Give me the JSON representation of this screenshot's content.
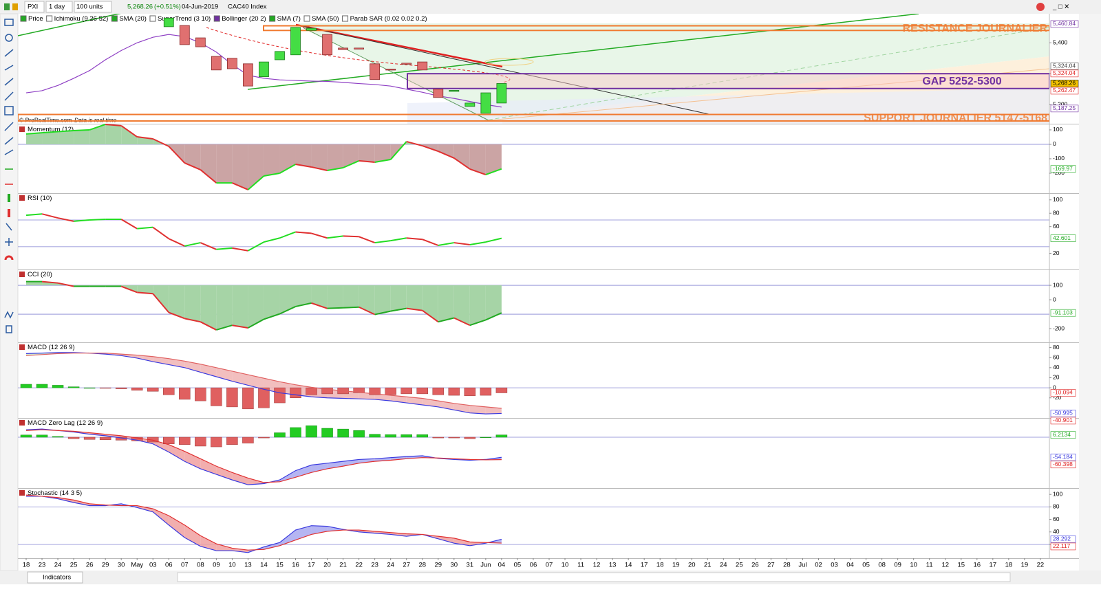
{
  "toolbar": {
    "symbol": "PXI",
    "period": "1 day",
    "units": "100 units",
    "last": "5,268.26",
    "change": "(+0.51%)",
    "date": "04-Jun-2019",
    "name": "CAC40 Index"
  },
  "legend": [
    {
      "text": "Price",
      "color": "#22aa22"
    },
    {
      "text": "Ichimoku (9 26 52)",
      "color": "#ffffff"
    },
    {
      "text": "SMA (20)",
      "color": "#22aa22"
    },
    {
      "text": "SuperTrend (3 10)",
      "color": "#ffffff"
    },
    {
      "text": "Bollinger (20 2)",
      "color": "#7030a0"
    },
    {
      "text": "SMA (7)",
      "color": "#22aa22"
    },
    {
      "text": "SMA (50)",
      "color": "#ffffff"
    },
    {
      "text": "Parab SAR (0.02 0.02 0.2)",
      "color": "#ffffff"
    }
  ],
  "copyright": "© ProRealTime.com",
  "realtime": "Data is real time",
  "bottom_button": "Indicators",
  "chart_data": [
    {
      "type": "candlestick",
      "categories": [
        "18",
        "23",
        "24",
        "25",
        "26",
        "29",
        "30",
        "May",
        "03",
        "06",
        "07",
        "08",
        "09",
        "10",
        "13",
        "14",
        "15",
        "16",
        "17",
        "20",
        "21",
        "22",
        "23",
        "24",
        "27",
        "28",
        "29",
        "30",
        "31",
        "Jun",
        "04",
        "05",
        "06",
        "07",
        "10",
        "11",
        "12",
        "13",
        "14",
        "17",
        "18",
        "19",
        "20",
        "21",
        "24",
        "25",
        "26",
        "27",
        "28",
        "Jul",
        "02",
        "03",
        "04",
        "05",
        "08",
        "09",
        "10",
        "11",
        "12",
        "15",
        "16",
        "17",
        "18",
        "19",
        "22"
      ],
      "open": [
        null,
        null,
        null,
        null,
        null,
        null,
        null,
        null,
        null,
        5452,
        5456,
        5416,
        5356,
        5350,
        5332,
        5290,
        5345,
        5361,
        5440,
        5427,
        5383,
        5383,
        5332,
        5315,
        5334,
        5338,
        5250,
        5243,
        5194,
        5172,
        5205,
        null,
        null,
        null,
        null,
        null,
        null,
        null,
        null,
        null,
        null,
        null,
        null,
        null,
        null,
        null,
        null,
        null,
        null,
        null,
        null,
        null,
        null,
        null,
        null,
        null,
        null,
        null,
        null,
        null,
        null,
        null,
        null,
        null,
        null
      ],
      "close": [
        null,
        null,
        null,
        null,
        null,
        null,
        null,
        null,
        null,
        5480,
        5394,
        5387,
        5312,
        5316,
        5260,
        5338,
        5372,
        5450,
        5447,
        5361,
        5378,
        5381,
        5281,
        5313,
        5333,
        5312,
        5223,
        5246,
        5205,
        5238,
        5268.26,
        null,
        null,
        null,
        null,
        null,
        null,
        null,
        null,
        null,
        null,
        null,
        null,
        null,
        null,
        null,
        null,
        null,
        null,
        null,
        null,
        null,
        null,
        null,
        null,
        null,
        null,
        null,
        null,
        null,
        null,
        null,
        null,
        null,
        null
      ],
      "sma": {
        "color": "#8e3fc4",
        "values": [
          5238,
          5245,
          5262,
          5285,
          5310,
          5345,
          5375,
          5400,
          5418,
          5427,
          5420,
          5400,
          5370,
          5330,
          5295,
          5285,
          5280,
          5278,
          5276,
          5275,
          5272,
          5268,
          5265,
          5260,
          5250,
          5240,
          5228,
          5220,
          5210,
          5200,
          5192
        ]
      },
      "ylim": [
        5138,
        5494
      ],
      "yticks": [
        {
          "value": 5200,
          "label": "5,200"
        },
        {
          "value": 5300,
          "label": "5,300"
        },
        {
          "value": 5400,
          "label": "5,400"
        }
      ],
      "price_labels": [
        {
          "value": 5460.84,
          "label": "5,460.84",
          "color": "#7030a0",
          "bg": "#ffffff"
        },
        {
          "value": 5324.04,
          "label": "5,324.04",
          "color": "#444444",
          "bg": "#ffffff"
        },
        {
          "value": 5324.04,
          "label": "5,324.04",
          "color": "#e02020",
          "bg": "#ffffff"
        },
        {
          "value": 5268.26,
          "label": "5,268.26",
          "color": "#000000",
          "bg": "#f5c400"
        },
        {
          "value": 5262.47,
          "label": "5,262.47",
          "color": "#e02020",
          "bg": "#ffffff"
        },
        {
          "value": 5187.25,
          "label": "5,187.25",
          "color": "#7030a0",
          "bg": "#ffffff"
        }
      ],
      "annotations": [
        {
          "text": "RESISTANCE JOURNALIER",
          "range": [
            5440,
            5455
          ],
          "color": "#f07a30"
        },
        {
          "text": "GAP 5252-5300",
          "range": [
            5252,
            5300
          ],
          "color": "#7030a0"
        },
        {
          "text": "SUPPORT JOURNALIER 5147-5168",
          "range": [
            5147,
            5168
          ],
          "color": "#f07a30"
        }
      ]
    },
    {
      "type": "line",
      "title": "Momentum (12)",
      "ylim": [
        -338,
        133
      ],
      "yticks": [
        100,
        0,
        -100,
        -200
      ],
      "levels": [
        0
      ],
      "fill_to": 0,
      "fill_colors": [
        "#a6d4a6",
        "#cba4a4"
      ],
      "series": [
        {
          "colors": [
            "#22dd22",
            "#e03030"
          ],
          "values": [
            72,
            80,
            88,
            95,
            100,
            138,
            129,
            52,
            38,
            -14,
            -129,
            -176,
            -267,
            -267,
            -314,
            -219,
            -200,
            -138,
            -157,
            -181,
            -162,
            -114,
            -124,
            -105,
            19,
            -10,
            -48,
            -95,
            -171,
            -210,
            -169.97
          ],
          "last_label": "-169.97",
          "label_color": "#22aa22"
        }
      ]
    },
    {
      "type": "line",
      "title": "RSI (10)",
      "ylim": [
        -4,
        109
      ],
      "yticks": [
        100,
        80,
        60,
        20
      ],
      "levels": [
        70,
        30
      ],
      "series": [
        {
          "colors": [
            "#22dd22",
            "#e03030"
          ],
          "values": [
            77,
            79,
            73,
            68,
            70,
            71,
            71,
            57,
            59,
            42,
            31,
            36,
            26,
            28,
            24,
            37,
            43,
            52,
            50,
            43,
            46,
            45,
            36,
            39,
            43,
            41,
            32,
            36,
            33,
            37,
            42.601
          ],
          "last_label": "42.601",
          "label_color": "#22aa22"
        }
      ]
    },
    {
      "type": "line",
      "title": "CCI (20)",
      "ylim": [
        -295,
        205
      ],
      "yticks": [
        100,
        0,
        -200
      ],
      "levels": [
        100,
        -100
      ],
      "fill_to": 100,
      "fill_colors": [
        "#a6d4a6",
        "#a6d4a6"
      ],
      "series": [
        {
          "colors": [
            "#22aa22",
            "#e03030"
          ],
          "values": [
            126,
            126,
            116,
            93,
            93,
            93,
            93,
            51,
            42,
            -88,
            -130,
            -153,
            -209,
            -177,
            -195,
            -135,
            -98,
            -47,
            -23,
            -60,
            -56,
            -51,
            -102,
            -79,
            -60,
            -74,
            -153,
            -126,
            -177,
            -140,
            -91.103
          ],
          "last_label": "-91.103",
          "label_color": "#22aa22"
        }
      ]
    },
    {
      "type": "line",
      "title": "MACD (12 26 9)",
      "ylim": [
        -60,
        89
      ],
      "yticks": [
        80,
        60,
        40,
        20,
        0,
        -20
      ],
      "levels": [
        0
      ],
      "fill_between": true,
      "fill_colors": [
        "#c8e6c8",
        "#f0b4b4"
      ],
      "series": [
        {
          "style": "bar",
          "colors": [
            "#22cc22",
            "#e06060"
          ],
          "values": [
            7,
            7,
            5,
            2,
            0,
            -1,
            -2,
            -5,
            -7,
            -14,
            -23,
            -26,
            -36,
            -38,
            -42,
            -40,
            -30,
            -20,
            -14,
            -12,
            -12,
            -10,
            -14,
            -14,
            -12,
            -12,
            -14,
            -15,
            -16,
            -15,
            -10.094
          ],
          "last_label": "-10.094",
          "label_color": "#e02020"
        },
        {
          "color": "#3a3adf",
          "values": [
            68,
            69,
            70,
            70,
            69,
            67,
            64,
            59,
            52,
            46,
            40,
            31,
            22,
            13,
            5,
            -3,
            -10,
            -14,
            -18,
            -20,
            -21,
            -22,
            -23,
            -26,
            -30,
            -34,
            -38,
            -44,
            -50,
            -52,
            -50.995
          ],
          "last_label": "-50.995",
          "label_color": "#3a3adf"
        },
        {
          "color": "#e06060",
          "values": [
            64,
            66,
            68,
            69,
            69,
            69,
            67,
            65,
            62,
            58,
            53,
            47,
            40,
            33,
            26,
            19,
            12,
            6,
            1,
            -3,
            -6,
            -9,
            -12,
            -15,
            -18,
            -21,
            -26,
            -31,
            -35,
            -38,
            -40.901
          ],
          "last_label": "-40.901",
          "label_color": "#e02020"
        }
      ]
    },
    {
      "type": "line",
      "title": "MACD Zero Lag (12 26 9)",
      "ylim": [
        -137,
        50
      ],
      "yticks": [],
      "levels": [
        0
      ],
      "fill_between": true,
      "fill_colors": [
        "#a8a8f0",
        "#f0a0a0"
      ],
      "series": [
        {
          "style": "bar",
          "colors": [
            "#22cc22",
            "#e06060"
          ],
          "values": [
            6,
            6,
            2,
            -4,
            -6,
            -7,
            -8,
            -10,
            -13,
            -18,
            -20,
            -24,
            -26,
            -20,
            -16,
            -2,
            12,
            26,
            31,
            24,
            22,
            18,
            8,
            7,
            7,
            7,
            -2,
            -2,
            -4,
            0,
            6.2134
          ],
          "last_label": "6.2134",
          "label_color": "#22aa22"
        },
        {
          "color": "#3a3adf",
          "values": [
            20,
            22,
            18,
            14,
            8,
            4,
            -2,
            -8,
            -18,
            -40,
            -65,
            -85,
            -100,
            -115,
            -128,
            -125,
            -115,
            -90,
            -75,
            -70,
            -65,
            -60,
            -58,
            -55,
            -52,
            -50,
            -57,
            -60,
            -62,
            -60,
            -54.184
          ],
          "last_label": "-54.184",
          "label_color": "#3a3adf"
        },
        {
          "color": "#e03030",
          "values": [
            18,
            20,
            18,
            16,
            12,
            8,
            4,
            -2,
            -8,
            -20,
            -38,
            -58,
            -78,
            -95,
            -110,
            -122,
            -120,
            -108,
            -95,
            -85,
            -78,
            -70,
            -65,
            -62,
            -58,
            -55,
            -56,
            -58,
            -60,
            -61,
            -60.398
          ],
          "last_label": "-60.398",
          "label_color": "#e02020"
        }
      ]
    },
    {
      "type": "line",
      "title": "Stochastic (14 3 5)",
      "ylim": [
        -2,
        109
      ],
      "yticks": [
        100,
        80,
        60,
        40,
        20
      ],
      "levels": [
        80,
        20
      ],
      "fill_between": true,
      "fill_colors": [
        "#a8a8f0",
        "#f0a0a0"
      ],
      "series": [
        {
          "color": "#3a3adf",
          "values": [
            97,
            97,
            93,
            87,
            82,
            82,
            85,
            79,
            72,
            51,
            31,
            17,
            10,
            10,
            7,
            16,
            23,
            43,
            50,
            49,
            44,
            40,
            38,
            36,
            33,
            36,
            29,
            22,
            18,
            22,
            28.292
          ],
          "last_label": "28.292",
          "label_color": "#3a3adf"
        },
        {
          "color": "#e03030",
          "values": [
            99,
            97,
            95,
            91,
            85,
            83,
            82,
            82,
            77,
            66,
            51,
            34,
            21,
            14,
            11,
            12,
            18,
            27,
            36,
            41,
            43,
            43,
            41,
            39,
            37,
            36,
            33,
            30,
            24,
            23,
            22.117
          ],
          "last_label": "22.117",
          "label_color": "#e02020"
        }
      ]
    }
  ]
}
